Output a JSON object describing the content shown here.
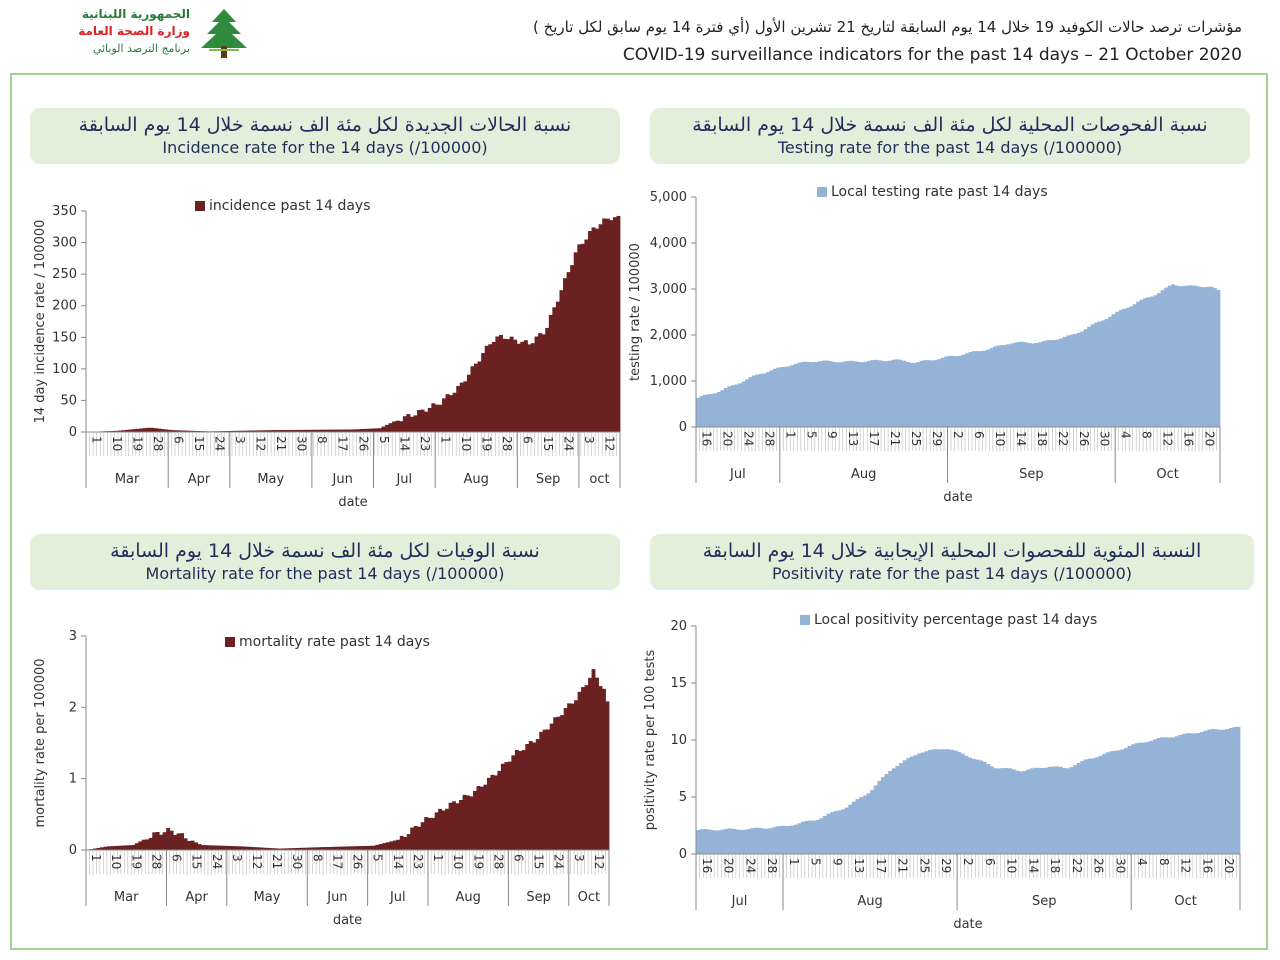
{
  "header": {
    "logo_line1": "الجمهورية اللبنانية",
    "logo_line2": "وزارة الصحة العامة",
    "logo_line3": "برنامج الترصد الوبائي",
    "title_ar": "مؤشرات ترصد حالات الكوفيد 19 خلال 14 يوم السابقة لتاريخ 21 تشرين الأول (أي فترة 14 يوم سابق لكل تاريخ )",
    "title_en": "COVID-19 surveillance indicators for the past 14 days – 21 October 2020"
  },
  "panels": {
    "incidence": {
      "title_ar": "نسبة الحالات الجديدة لكل مئة الف نسمة خلال 14 يوم السابقة",
      "title_en": "Incidence rate for the 14 days  (/100000)"
    },
    "testing": {
      "title_ar": "نسبة الفحوصات المحلية لكل مئة الف نسمة خلال 14 يوم السابقة",
      "title_en": "Testing rate for the past 14 days (/100000)"
    },
    "mortality": {
      "title_ar": "نسبة الوفيات لكل مئة الف نسمة خلال 14 يوم السابقة",
      "title_en": "Mortality rate for the past 14 days (/100000)"
    },
    "positivity": {
      "title_ar": "النسبة المئوية للفحصوات المحلية الإيجابية خلال 14 يوم السابقة",
      "title_en": "Positivity rate for the past 14 days (/100000)"
    }
  },
  "colors": {
    "dark_red": "#6b2121",
    "blue": "#95b3d7",
    "title_bg": "#e2efda",
    "frame": "#a9d18e"
  },
  "chart_data": [
    {
      "id": "incidence",
      "type": "area",
      "title": "",
      "xlabel": "date",
      "ylabel": "14 day incidence rate / 100000",
      "legend": "incidence past 14 days",
      "legend_position": "top",
      "color": "#6b2121",
      "ylim": [
        0,
        350
      ],
      "yticks": [
        0,
        50,
        100,
        150,
        200,
        250,
        300,
        350
      ],
      "ytick_labels": [
        "0",
        "50",
        "100",
        "150",
        "200",
        "250",
        "300",
        "350"
      ],
      "months": [
        {
          "label": "Mar",
          "days": [
            "1",
            "10",
            "19",
            "28"
          ]
        },
        {
          "label": "Apr",
          "days": [
            "6",
            "15",
            "24"
          ]
        },
        {
          "label": "May",
          "days": [
            "3",
            "12",
            "21",
            "30"
          ]
        },
        {
          "label": "Jun",
          "days": [
            "8",
            "17",
            "26"
          ]
        },
        {
          "label": "Jul",
          "days": [
            "5",
            "14",
            "23"
          ]
        },
        {
          "label": "Aug",
          "days": [
            "1",
            "10",
            "19",
            "28"
          ]
        },
        {
          "label": "Sep",
          "days": [
            "6",
            "15",
            "24"
          ]
        },
        {
          "label": "oct",
          "days": [
            "3",
            "12"
          ]
        }
      ],
      "points": [
        [
          0,
          0
        ],
        [
          0.06,
          2
        ],
        [
          0.12,
          7
        ],
        [
          0.16,
          3
        ],
        [
          0.23,
          1
        ],
        [
          0.35,
          3
        ],
        [
          0.5,
          4
        ],
        [
          0.55,
          6
        ],
        [
          0.58,
          18
        ],
        [
          0.62,
          30
        ],
        [
          0.66,
          45
        ],
        [
          0.7,
          72
        ],
        [
          0.74,
          120
        ],
        [
          0.76,
          145
        ],
        [
          0.78,
          152
        ],
        [
          0.8,
          146
        ],
        [
          0.83,
          140
        ],
        [
          0.86,
          160
        ],
        [
          0.89,
          225
        ],
        [
          0.92,
          290
        ],
        [
          0.95,
          322
        ],
        [
          0.98,
          340
        ],
        [
          1,
          338
        ]
      ]
    },
    {
      "id": "testing",
      "type": "area",
      "title": "",
      "xlabel": "date",
      "ylabel": "testing rate / 100000",
      "legend": "Local testing rate past 14 days",
      "legend_position": "top",
      "color": "#95b3d7",
      "ylim": [
        0,
        5000
      ],
      "yticks": [
        0,
        1000,
        2000,
        3000,
        4000,
        5000
      ],
      "ytick_labels": [
        "0",
        "1,000",
        "2,000",
        "3,000",
        "4,000",
        "5,000"
      ],
      "months": [
        {
          "label": "Jul",
          "days": [
            "16",
            "20",
            "24",
            "28"
          ]
        },
        {
          "label": "Aug",
          "days": [
            "1",
            "5",
            "9",
            "13",
            "17",
            "21",
            "25",
            "29"
          ]
        },
        {
          "label": "Sep",
          "days": [
            "2",
            "6",
            "10",
            "14",
            "18",
            "22",
            "26",
            "30"
          ]
        },
        {
          "label": "Oct",
          "days": [
            "4",
            "8",
            "12",
            "16",
            "20"
          ]
        }
      ],
      "points": [
        [
          0,
          620
        ],
        [
          0.05,
          800
        ],
        [
          0.12,
          1150
        ],
        [
          0.18,
          1350
        ],
        [
          0.22,
          1430
        ],
        [
          0.3,
          1420
        ],
        [
          0.38,
          1460
        ],
        [
          0.42,
          1400
        ],
        [
          0.5,
          1560
        ],
        [
          0.56,
          1700
        ],
        [
          0.6,
          1830
        ],
        [
          0.66,
          1840
        ],
        [
          0.72,
          2000
        ],
        [
          0.78,
          2350
        ],
        [
          0.84,
          2700
        ],
        [
          0.88,
          2900
        ],
        [
          0.91,
          3100
        ],
        [
          0.94,
          3060
        ],
        [
          0.98,
          3060
        ],
        [
          1,
          2940
        ]
      ]
    },
    {
      "id": "mortality",
      "type": "area",
      "title": "",
      "xlabel": "date",
      "ylabel": "mortality rate per 100000",
      "legend": "mortality rate past 14 days",
      "legend_position": "top",
      "color": "#6b2121",
      "ylim": [
        0,
        3
      ],
      "yticks": [
        0,
        1,
        2,
        3
      ],
      "ytick_labels": [
        "0",
        "1",
        "2",
        "3"
      ],
      "months": [
        {
          "label": "Mar",
          "days": [
            "1",
            "10",
            "19",
            "28"
          ]
        },
        {
          "label": "Apr",
          "days": [
            "6",
            "15",
            "24"
          ]
        },
        {
          "label": "May",
          "days": [
            "3",
            "12",
            "21",
            "30"
          ]
        },
        {
          "label": "Jun",
          "days": [
            "8",
            "17",
            "26"
          ]
        },
        {
          "label": "Jul",
          "days": [
            "5",
            "14",
            "23"
          ]
        },
        {
          "label": "Aug",
          "days": [
            "1",
            "10",
            "19",
            "28"
          ]
        },
        {
          "label": "Sep",
          "days": [
            "6",
            "15",
            "24"
          ]
        },
        {
          "label": "Oct",
          "days": [
            "3",
            "12"
          ]
        }
      ],
      "points": [
        [
          0,
          0
        ],
        [
          0.04,
          0.05
        ],
        [
          0.09,
          0.07
        ],
        [
          0.13,
          0.22
        ],
        [
          0.16,
          0.28
        ],
        [
          0.19,
          0.18
        ],
        [
          0.22,
          0.07
        ],
        [
          0.3,
          0.05
        ],
        [
          0.37,
          0.02
        ],
        [
          0.45,
          0.04
        ],
        [
          0.55,
          0.06
        ],
        [
          0.6,
          0.15
        ],
        [
          0.64,
          0.38
        ],
        [
          0.7,
          0.65
        ],
        [
          0.74,
          0.8
        ],
        [
          0.78,
          1.05
        ],
        [
          0.82,
          1.35
        ],
        [
          0.86,
          1.55
        ],
        [
          0.9,
          1.85
        ],
        [
          0.94,
          2.15
        ],
        [
          0.97,
          2.5
        ],
        [
          0.99,
          2.25
        ],
        [
          1,
          1.95
        ]
      ]
    },
    {
      "id": "positivity",
      "type": "area",
      "title": "",
      "xlabel": "date",
      "ylabel": "positivity rate per 100 tests",
      "legend": "Local positivity percentage past 14 days",
      "legend_position": "top",
      "color": "#95b3d7",
      "ylim": [
        0,
        20
      ],
      "yticks": [
        0,
        5,
        10,
        15,
        20
      ],
      "ytick_labels": [
        "0",
        "5",
        "10",
        "15",
        "20"
      ],
      "months": [
        {
          "label": "Jul",
          "days": [
            "16",
            "20",
            "24",
            "28"
          ]
        },
        {
          "label": "Aug",
          "days": [
            "1",
            "5",
            "9",
            "13",
            "17",
            "21",
            "25",
            "29"
          ]
        },
        {
          "label": "Sep",
          "days": [
            "2",
            "6",
            "10",
            "14",
            "18",
            "22",
            "26",
            "30"
          ]
        },
        {
          "label": "Oct",
          "days": [
            "4",
            "8",
            "12",
            "16",
            "20"
          ]
        }
      ],
      "points": [
        [
          0,
          2.1
        ],
        [
          0.1,
          2.2
        ],
        [
          0.16,
          2.4
        ],
        [
          0.22,
          3.0
        ],
        [
          0.28,
          4.2
        ],
        [
          0.32,
          5.5
        ],
        [
          0.36,
          7.5
        ],
        [
          0.41,
          8.9
        ],
        [
          0.46,
          9.3
        ],
        [
          0.5,
          8.6
        ],
        [
          0.55,
          7.6
        ],
        [
          0.6,
          7.3
        ],
        [
          0.65,
          7.7
        ],
        [
          0.68,
          7.5
        ],
        [
          0.72,
          8.3
        ],
        [
          0.78,
          9.2
        ],
        [
          0.82,
          9.8
        ],
        [
          0.86,
          10.2
        ],
        [
          0.9,
          10.5
        ],
        [
          0.95,
          10.9
        ],
        [
          1,
          11.1
        ]
      ]
    }
  ]
}
